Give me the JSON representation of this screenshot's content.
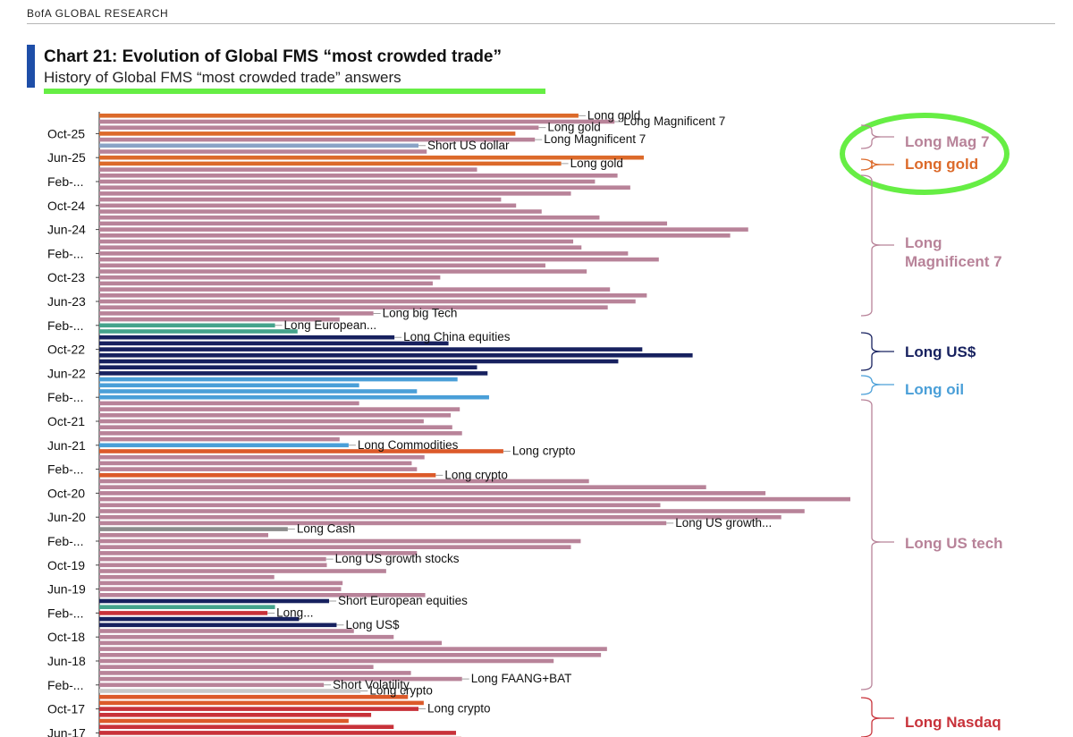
{
  "header": {
    "brand": "BofA GLOBAL RESEARCH",
    "title": "Chart 21: Evolution of Global FMS “most crowded trade”",
    "subtitle": "History of Global FMS “most crowded trade” answers"
  },
  "colors": {
    "accent": "#1e4ea8",
    "highlight": "#66ee44",
    "long_mag7": "#b88399",
    "long_gold": "#dc6a2a",
    "short_usd": "#8aa3c6",
    "long_usd": "#17215f",
    "long_oil": "#4a9fd8",
    "long_europe": "#45a38c",
    "long_cash": "#8c8c8c",
    "short_vol": "#c9c9c9",
    "long_crypto": "#dc5a2a",
    "long_nasdaq": "#c8323a"
  },
  "chart_data": {
    "type": "bar",
    "orientation": "horizontal",
    "title": "Chart 21: Evolution of Global FMS “most crowded trade”",
    "subtitle": "History of Global FMS “most crowded trade” answers",
    "x_axis": "percent of respondents (unlabeled)",
    "xlim": [
      0,
      100
    ],
    "y_tick_labels": [
      {
        "label": "Oct-25",
        "row": 3
      },
      {
        "label": "Jun-25",
        "row": 7
      },
      {
        "label": "Feb-...",
        "row": 11
      },
      {
        "label": "Oct-24",
        "row": 15
      },
      {
        "label": "Jun-24",
        "row": 19
      },
      {
        "label": "Feb-...",
        "row": 23
      },
      {
        "label": "Oct-23",
        "row": 27
      },
      {
        "label": "Jun-23",
        "row": 31
      },
      {
        "label": "Feb-...",
        "row": 35
      },
      {
        "label": "Oct-22",
        "row": 39
      },
      {
        "label": "Jun-22",
        "row": 43
      },
      {
        "label": "Feb-...",
        "row": 47
      },
      {
        "label": "Oct-21",
        "row": 51
      },
      {
        "label": "Jun-21",
        "row": 55
      },
      {
        "label": "Feb-...",
        "row": 59
      },
      {
        "label": "Oct-20",
        "row": 63
      },
      {
        "label": "Jun-20",
        "row": 67
      },
      {
        "label": "Feb-...",
        "row": 71
      },
      {
        "label": "Oct-19",
        "row": 75
      },
      {
        "label": "Jun-19",
        "row": 79
      },
      {
        "label": "Feb-...",
        "row": 83
      },
      {
        "label": "Oct-18",
        "row": 87
      },
      {
        "label": "Jun-18",
        "row": 91
      },
      {
        "label": "Feb-...",
        "row": 95
      },
      {
        "label": "Oct-17",
        "row": 99
      },
      {
        "label": "Jun-17",
        "row": 103
      }
    ],
    "bars": [
      {
        "value": 63.8,
        "trade": "long_gold"
      },
      {
        "value": 68.6,
        "trade": "long_mag7"
      },
      {
        "value": 58.5,
        "trade": "long_mag7"
      },
      {
        "value": 55.4,
        "trade": "long_gold"
      },
      {
        "value": 58.0,
        "trade": "long_mag7"
      },
      {
        "value": 42.5,
        "trade": "short_usd"
      },
      {
        "value": 43.6,
        "trade": "long_mag7"
      },
      {
        "value": 72.5,
        "trade": "long_gold"
      },
      {
        "value": 61.5,
        "trade": "long_gold"
      },
      {
        "value": 50.3,
        "trade": "long_mag7"
      },
      {
        "value": 69.0,
        "trade": "long_mag7"
      },
      {
        "value": 66.0,
        "trade": "long_mag7"
      },
      {
        "value": 70.7,
        "trade": "long_mag7"
      },
      {
        "value": 62.8,
        "trade": "long_mag7"
      },
      {
        "value": 53.5,
        "trade": "long_mag7"
      },
      {
        "value": 55.5,
        "trade": "long_mag7"
      },
      {
        "value": 58.9,
        "trade": "long_mag7"
      },
      {
        "value": 66.6,
        "trade": "long_mag7"
      },
      {
        "value": 75.6,
        "trade": "long_mag7"
      },
      {
        "value": 86.4,
        "trade": "long_mag7"
      },
      {
        "value": 84.0,
        "trade": "long_mag7"
      },
      {
        "value": 63.1,
        "trade": "long_mag7"
      },
      {
        "value": 64.2,
        "trade": "long_mag7"
      },
      {
        "value": 70.4,
        "trade": "long_mag7"
      },
      {
        "value": 74.5,
        "trade": "long_mag7"
      },
      {
        "value": 59.4,
        "trade": "long_mag7"
      },
      {
        "value": 64.9,
        "trade": "long_mag7"
      },
      {
        "value": 45.4,
        "trade": "long_mag7"
      },
      {
        "value": 44.4,
        "trade": "long_mag7"
      },
      {
        "value": 68.0,
        "trade": "long_mag7"
      },
      {
        "value": 72.9,
        "trade": "long_mag7"
      },
      {
        "value": 71.4,
        "trade": "long_mag7"
      },
      {
        "value": 67.7,
        "trade": "long_mag7"
      },
      {
        "value": 36.5,
        "trade": "long_mag7"
      },
      {
        "value": 32.0,
        "trade": "long_mag7"
      },
      {
        "value": 23.4,
        "trade": "long_europe"
      },
      {
        "value": 26.4,
        "trade": "long_europe"
      },
      {
        "value": 39.3,
        "trade": "long_usd"
      },
      {
        "value": 46.5,
        "trade": "long_usd"
      },
      {
        "value": 72.3,
        "trade": "long_usd"
      },
      {
        "value": 79.0,
        "trade": "long_usd"
      },
      {
        "value": 69.1,
        "trade": "long_usd"
      },
      {
        "value": 50.3,
        "trade": "long_usd"
      },
      {
        "value": 51.7,
        "trade": "long_usd"
      },
      {
        "value": 47.7,
        "trade": "long_oil"
      },
      {
        "value": 34.6,
        "trade": "long_oil"
      },
      {
        "value": 42.3,
        "trade": "long_oil"
      },
      {
        "value": 51.9,
        "trade": "long_oil"
      },
      {
        "value": 34.6,
        "trade": "long_mag7"
      },
      {
        "value": 48.0,
        "trade": "long_mag7"
      },
      {
        "value": 46.8,
        "trade": "long_mag7"
      },
      {
        "value": 43.2,
        "trade": "long_mag7"
      },
      {
        "value": 47.0,
        "trade": "long_mag7"
      },
      {
        "value": 48.3,
        "trade": "long_mag7"
      },
      {
        "value": 32.0,
        "trade": "long_mag7"
      },
      {
        "value": 33.2,
        "trade": "long_oil"
      },
      {
        "value": 53.8,
        "trade": "long_crypto"
      },
      {
        "value": 43.3,
        "trade": "long_mag7"
      },
      {
        "value": 41.6,
        "trade": "long_mag7"
      },
      {
        "value": 42.3,
        "trade": "long_mag7"
      },
      {
        "value": 44.8,
        "trade": "long_crypto"
      },
      {
        "value": 65.2,
        "trade": "long_mag7"
      },
      {
        "value": 80.8,
        "trade": "long_mag7"
      },
      {
        "value": 88.7,
        "trade": "long_mag7"
      },
      {
        "value": 100.0,
        "trade": "long_mag7"
      },
      {
        "value": 74.7,
        "trade": "long_mag7"
      },
      {
        "value": 93.9,
        "trade": "long_mag7"
      },
      {
        "value": 90.8,
        "trade": "long_mag7"
      },
      {
        "value": 75.5,
        "trade": "long_mag7"
      },
      {
        "value": 25.1,
        "trade": "long_cash"
      },
      {
        "value": 22.5,
        "trade": "long_mag7"
      },
      {
        "value": 64.1,
        "trade": "long_mag7"
      },
      {
        "value": 62.8,
        "trade": "long_mag7"
      },
      {
        "value": 42.3,
        "trade": "long_mag7"
      },
      {
        "value": 30.2,
        "trade": "long_mag7"
      },
      {
        "value": 30.3,
        "trade": "long_mag7"
      },
      {
        "value": 38.2,
        "trade": "long_mag7"
      },
      {
        "value": 23.3,
        "trade": "long_mag7"
      },
      {
        "value": 32.4,
        "trade": "long_mag7"
      },
      {
        "value": 32.2,
        "trade": "long_mag7"
      },
      {
        "value": 43.4,
        "trade": "long_mag7"
      },
      {
        "value": 30.6,
        "trade": "long_usd"
      },
      {
        "value": 23.4,
        "trade": "long_europe"
      },
      {
        "value": 22.4,
        "trade": "long_nasdaq"
      },
      {
        "value": 26.6,
        "trade": "long_usd"
      },
      {
        "value": 31.6,
        "trade": "long_usd"
      },
      {
        "value": 33.9,
        "trade": "long_mag7"
      },
      {
        "value": 39.2,
        "trade": "long_mag7"
      },
      {
        "value": 45.6,
        "trade": "long_mag7"
      },
      {
        "value": 67.6,
        "trade": "long_mag7"
      },
      {
        "value": 66.8,
        "trade": "long_mag7"
      },
      {
        "value": 60.5,
        "trade": "long_mag7"
      },
      {
        "value": 36.5,
        "trade": "long_mag7"
      },
      {
        "value": 41.5,
        "trade": "long_mag7"
      },
      {
        "value": 48.3,
        "trade": "long_mag7"
      },
      {
        "value": 29.9,
        "trade": "long_mag7"
      },
      {
        "value": 34.8,
        "trade": "short_vol"
      },
      {
        "value": 41.1,
        "trade": "long_crypto"
      },
      {
        "value": 43.2,
        "trade": "long_crypto"
      },
      {
        "value": 42.5,
        "trade": "long_nasdaq"
      },
      {
        "value": 36.2,
        "trade": "long_nasdaq"
      },
      {
        "value": 33.2,
        "trade": "long_crypto"
      },
      {
        "value": 39.2,
        "trade": "long_nasdaq"
      },
      {
        "value": 47.5,
        "trade": "long_nasdaq"
      },
      {
        "value": 48.2,
        "trade": "long_nasdaq"
      }
    ],
    "annotations": [
      {
        "text": "Long gold",
        "row": 0
      },
      {
        "text": "Long Magnificent 7",
        "row": 1
      },
      {
        "text": "Long gold",
        "row": 2
      },
      {
        "text": "Long Magnificent 7",
        "row": 4
      },
      {
        "text": "Short US dollar",
        "row": 5
      },
      {
        "text": "Long gold",
        "row": 8
      },
      {
        "text": "Long big Tech",
        "row": 33
      },
      {
        "text": "Long European...",
        "row": 35
      },
      {
        "text": "Long China equities",
        "row": 37
      },
      {
        "text": "Long Commodities",
        "row": 55
      },
      {
        "text": "Long crypto",
        "row": 56
      },
      {
        "text": "Long crypto",
        "row": 60
      },
      {
        "text": "Long US growth...",
        "row": 68
      },
      {
        "text": "Long Cash",
        "row": 69
      },
      {
        "text": "Long US growth stocks",
        "row": 74
      },
      {
        "text": "Short European equities",
        "row": 81
      },
      {
        "text": "Long...",
        "row": 83
      },
      {
        "text": "Long US$",
        "row": 85
      },
      {
        "text": "Long FAANG+BAT",
        "row": 94
      },
      {
        "text": "Short Volatility",
        "row": 95
      },
      {
        "text": "Long crypto",
        "row": 96
      },
      {
        "text": "Long crypto",
        "row": 99
      }
    ],
    "legend": [
      {
        "label": "Long Mag 7",
        "color_key": "long_mag7"
      },
      {
        "label": "Long gold",
        "color_key": "long_gold"
      },
      {
        "label": "Long Magnificent 7",
        "color_key": "long_mag7"
      },
      {
        "label": "Long US$",
        "color_key": "long_usd"
      },
      {
        "label": "Long oil",
        "color_key": "long_oil"
      },
      {
        "label": "Long US tech",
        "color_key": "long_mag7"
      },
      {
        "label": "Long Nasdaq",
        "color_key": "long_nasdaq"
      }
    ],
    "legend_placement": "right",
    "grid": false
  }
}
